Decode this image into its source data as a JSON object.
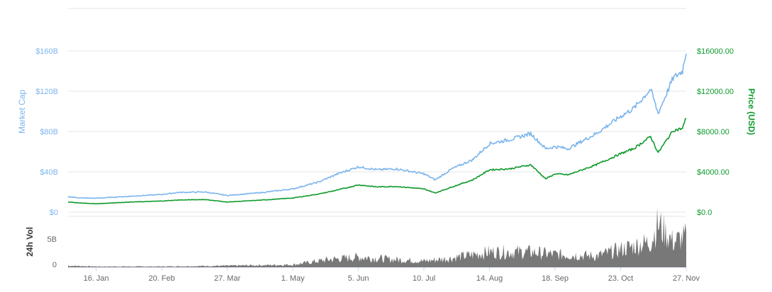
{
  "colors": {
    "market_cap": "#7cb5ec",
    "price": "#0e9a2b",
    "volume": "#606060",
    "grid": "#e6e6e6",
    "axis_text": "#666666"
  },
  "chart_data": [
    {
      "type": "line",
      "title": "",
      "x": [
        "16. Jan",
        "20. Feb",
        "27. Mar",
        "1. May",
        "5. Jun",
        "10. Jul",
        "14. Aug",
        "18. Sep",
        "23. Oct",
        "27. Nov"
      ],
      "xlabel": "",
      "ylabel_left": "Market Cap",
      "ylabel_right": "Price (USD)",
      "ylim_left": [
        0,
        160
      ],
      "ylim_right": [
        0,
        16000
      ],
      "left_ticks": [
        "$0",
        "$40B",
        "$80B",
        "$120B",
        "$160B"
      ],
      "right_ticks": [
        "$0.0",
        "$4000.00",
        "$8000.00",
        "$12000.00",
        "$16000.00"
      ],
      "grid": true,
      "series": [
        {
          "name": "Market Cap",
          "axis": "left",
          "unit": "billion USD",
          "points": [
            [
              "1. Jan",
              15.3
            ],
            [
              "8. Jan",
              14.0
            ],
            [
              "16. Jan",
              13.8
            ],
            [
              "1. Feb",
              15.5
            ],
            [
              "20. Feb",
              17.5
            ],
            [
              "1. Mar",
              19.5
            ],
            [
              "15. Mar",
              20.0
            ],
            [
              "27. Mar",
              16.5
            ],
            [
              "15. Apr",
              19.5
            ],
            [
              "1. May",
              23.0
            ],
            [
              "15. May",
              30.0
            ],
            [
              "25. May",
              38.0
            ],
            [
              "5. Jun",
              45.0
            ],
            [
              "15. Jun",
              42.0
            ],
            [
              "25. Jun",
              43.0
            ],
            [
              "10. Jul",
              38.0
            ],
            [
              "16. Jul",
              32.0
            ],
            [
              "25. Jul",
              43.0
            ],
            [
              "5. Aug",
              52.0
            ],
            [
              "14. Aug",
              68.0
            ],
            [
              "25. Aug",
              72.0
            ],
            [
              "5. Sep",
              78.0
            ],
            [
              "13. Sep",
              63.0
            ],
            [
              "18. Sep",
              65.0
            ],
            [
              "25. Sep",
              63.0
            ],
            [
              "10. Oct",
              78.0
            ],
            [
              "23. Oct",
              95.0
            ],
            [
              "30. Oct",
              103.0
            ],
            [
              "8. Nov",
              122.0
            ],
            [
              "12. Nov",
              98.0
            ],
            [
              "20. Nov",
              133.0
            ],
            [
              "25. Nov",
              140.0
            ],
            [
              "27. Nov",
              160.0
            ]
          ]
        },
        {
          "name": "Price (USD)",
          "axis": "right",
          "unit": "USD",
          "points": [
            [
              "1. Jan",
              1000
            ],
            [
              "8. Jan",
              900
            ],
            [
              "16. Jan",
              830
            ],
            [
              "1. Feb",
              980
            ],
            [
              "20. Feb",
              1100
            ],
            [
              "1. Mar",
              1200
            ],
            [
              "15. Mar",
              1250
            ],
            [
              "27. Mar",
              1000
            ],
            [
              "15. Apr",
              1200
            ],
            [
              "1. May",
              1400
            ],
            [
              "15. May",
              1800
            ],
            [
              "25. May",
              2200
            ],
            [
              "5. Jun",
              2700
            ],
            [
              "15. Jun",
              2500
            ],
            [
              "25. Jun",
              2550
            ],
            [
              "10. Jul",
              2300
            ],
            [
              "16. Jul",
              1900
            ],
            [
              "25. Jul",
              2500
            ],
            [
              "5. Aug",
              3200
            ],
            [
              "14. Aug",
              4200
            ],
            [
              "25. Aug",
              4300
            ],
            [
              "5. Sep",
              4700
            ],
            [
              "13. Sep",
              3300
            ],
            [
              "18. Sep",
              3800
            ],
            [
              "25. Sep",
              3700
            ],
            [
              "10. Oct",
              4700
            ],
            [
              "23. Oct",
              5800
            ],
            [
              "30. Oct",
              6300
            ],
            [
              "8. Nov",
              7500
            ],
            [
              "12. Nov",
              5900
            ],
            [
              "20. Nov",
              8100
            ],
            [
              "25. Nov",
              8300
            ],
            [
              "27. Nov",
              9400
            ]
          ]
        }
      ]
    },
    {
      "type": "area",
      "title": "",
      "ylabel": "24h Vol",
      "ylim": [
        0,
        9
      ],
      "ticks": [
        "0",
        "5B"
      ],
      "series": [
        {
          "name": "24h Vol",
          "unit": "billion USD",
          "points": [
            [
              "1. Jan",
              0.3
            ],
            [
              "16. Jan",
              0.15
            ],
            [
              "20. Feb",
              0.15
            ],
            [
              "27. Mar",
              0.3
            ],
            [
              "1. May",
              0.5
            ],
            [
              "20. May",
              1.5
            ],
            [
              "5. Jun",
              2.0
            ],
            [
              "25. Jun",
              1.5
            ],
            [
              "10. Jul",
              1.2
            ],
            [
              "25. Jul",
              1.8
            ],
            [
              "14. Aug",
              3.0
            ],
            [
              "5. Sep",
              3.0
            ],
            [
              "18. Sep",
              2.5
            ],
            [
              "10. Oct",
              2.2
            ],
            [
              "23. Oct",
              3.5
            ],
            [
              "8. Nov",
              5.0
            ],
            [
              "12. Nov",
              8.5
            ],
            [
              "20. Nov",
              5.0
            ],
            [
              "27. Nov",
              6.0
            ]
          ]
        }
      ]
    }
  ]
}
